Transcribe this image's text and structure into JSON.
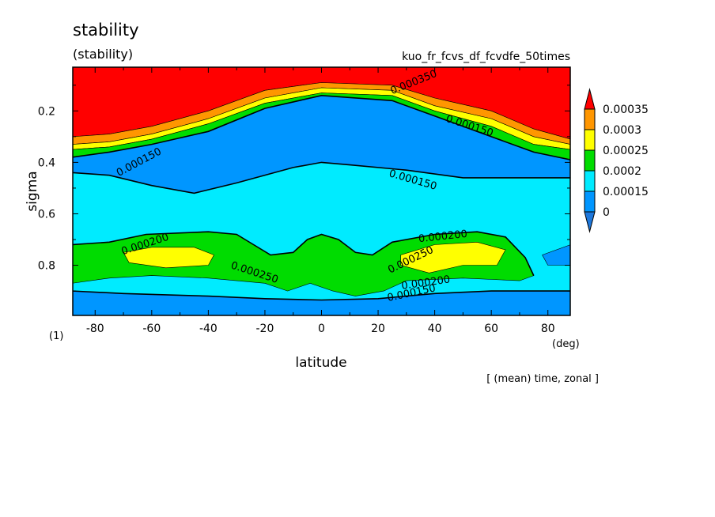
{
  "chart_data": {
    "type": "heatmap",
    "title": "stability",
    "subtitle": "(stability)",
    "run_name": "kuo_fr_fcvs_df_fcvdfe_50times",
    "xlabel": "latitude",
    "x_unit": "(deg)",
    "ylabel": "sigma",
    "y_unit": "(1)",
    "footnote": "[ (mean) time, zonal ]",
    "xlim": [
      -87.9,
      87.9
    ],
    "ylim": [
      0.995,
      0.03
    ],
    "x_ticks": [
      "-80",
      "-60",
      "-40",
      "-20",
      "0",
      "20",
      "40",
      "60",
      "80"
    ],
    "x_tick_values": [
      -80,
      -60,
      -40,
      -20,
      0,
      20,
      40,
      60,
      80
    ],
    "y_ticks": [
      "0.2",
      "0.4",
      "0.6",
      "0.8"
    ],
    "y_tick_values": [
      0.2,
      0.4,
      0.6,
      0.8
    ],
    "colorbar": {
      "labels": [
        "0.00035",
        "0.0003",
        "0.00025",
        "0.0002",
        "0.00015",
        "0"
      ],
      "bins": [
        {
          "level": "below 0",
          "color": "#1e78dc"
        },
        {
          "level": "0 – 0.00015",
          "color": "#0096ff"
        },
        {
          "level": "0.00015 – 0.0002",
          "color": "#00ebff"
        },
        {
          "level": "0.0002 – 0.00025",
          "color": "#00dc00"
        },
        {
          "level": "0.00025 – 0.0003",
          "color": "#ffff00"
        },
        {
          "level": "0.0003 – 0.00035",
          "color": "#ff9600"
        },
        {
          "level": "above 0.00035",
          "color": "#ff0000"
        }
      ]
    },
    "contour_labels": [
      "0.000150",
      "0.000200",
      "0.000250",
      "0.000350"
    ],
    "regions": [
      {
        "level": "above 0.00035",
        "color": "#ff0000",
        "poly": [
          [
            -88,
            0.03
          ],
          [
            88,
            0.03
          ],
          [
            88,
            0.31
          ],
          [
            75,
            0.27
          ],
          [
            60,
            0.2
          ],
          [
            40,
            0.15
          ],
          [
            25,
            0.1
          ],
          [
            0,
            0.09
          ],
          [
            -20,
            0.12
          ],
          [
            -40,
            0.2
          ],
          [
            -60,
            0.26
          ],
          [
            -75,
            0.29
          ],
          [
            -88,
            0.3
          ]
        ]
      },
      {
        "level": "0.0003 – 0.00035",
        "color": "#ff9600",
        "poly": [
          [
            -88,
            0.3
          ],
          [
            -75,
            0.29
          ],
          [
            -60,
            0.26
          ],
          [
            -40,
            0.2
          ],
          [
            -20,
            0.12
          ],
          [
            0,
            0.09
          ],
          [
            25,
            0.1
          ],
          [
            40,
            0.15
          ],
          [
            60,
            0.2
          ],
          [
            75,
            0.27
          ],
          [
            88,
            0.31
          ],
          [
            88,
            0.33
          ],
          [
            75,
            0.3
          ],
          [
            60,
            0.23
          ],
          [
            40,
            0.18
          ],
          [
            25,
            0.12
          ],
          [
            0,
            0.11
          ],
          [
            -20,
            0.15
          ],
          [
            -40,
            0.23
          ],
          [
            -60,
            0.29
          ],
          [
            -75,
            0.32
          ],
          [
            -88,
            0.33
          ]
        ]
      },
      {
        "level": "0.00025 – 0.0003",
        "color": "#ffff00",
        "poly": [
          [
            -88,
            0.33
          ],
          [
            -75,
            0.32
          ],
          [
            -60,
            0.29
          ],
          [
            -40,
            0.23
          ],
          [
            -20,
            0.15
          ],
          [
            0,
            0.11
          ],
          [
            25,
            0.12
          ],
          [
            40,
            0.18
          ],
          [
            60,
            0.23
          ],
          [
            75,
            0.3
          ],
          [
            88,
            0.33
          ],
          [
            88,
            0.35
          ],
          [
            75,
            0.33
          ],
          [
            60,
            0.26
          ],
          [
            40,
            0.2
          ],
          [
            25,
            0.14
          ],
          [
            0,
            0.13
          ],
          [
            -20,
            0.17
          ],
          [
            -40,
            0.25
          ],
          [
            -60,
            0.31
          ],
          [
            -75,
            0.34
          ],
          [
            -88,
            0.35
          ]
        ]
      },
      {
        "level": "0.0002 – 0.00025",
        "color": "#00dc00",
        "poly": [
          [
            -88,
            0.35
          ],
          [
            -75,
            0.34
          ],
          [
            -60,
            0.31
          ],
          [
            -40,
            0.25
          ],
          [
            -20,
            0.17
          ],
          [
            0,
            0.13
          ],
          [
            25,
            0.14
          ],
          [
            40,
            0.2
          ],
          [
            60,
            0.26
          ],
          [
            75,
            0.33
          ],
          [
            88,
            0.35
          ],
          [
            88,
            0.39
          ],
          [
            75,
            0.36
          ],
          [
            60,
            0.3
          ],
          [
            40,
            0.22
          ],
          [
            25,
            0.16
          ],
          [
            0,
            0.14
          ],
          [
            -20,
            0.19
          ],
          [
            -40,
            0.28
          ],
          [
            -60,
            0.33
          ],
          [
            -75,
            0.36
          ],
          [
            -88,
            0.38
          ]
        ]
      },
      {
        "level": "0 – 0.00015",
        "color": "#0096ff",
        "poly": [
          [
            -88,
            0.38
          ],
          [
            -75,
            0.36
          ],
          [
            -60,
            0.33
          ],
          [
            -40,
            0.28
          ],
          [
            -20,
            0.19
          ],
          [
            0,
            0.14
          ],
          [
            25,
            0.16
          ],
          [
            40,
            0.22
          ],
          [
            60,
            0.3
          ],
          [
            75,
            0.36
          ],
          [
            88,
            0.39
          ],
          [
            88,
            0.46
          ],
          [
            70,
            0.46
          ],
          [
            50,
            0.46
          ],
          [
            30,
            0.43
          ],
          [
            10,
            0.41
          ],
          [
            0,
            0.4
          ],
          [
            -10,
            0.42
          ],
          [
            -30,
            0.48
          ],
          [
            -45,
            0.52
          ],
          [
            -60,
            0.49
          ],
          [
            -75,
            0.45
          ],
          [
            -88,
            0.44
          ]
        ]
      },
      {
        "level": "0.0002 – 0.00025",
        "color": "#00dc00",
        "poly": [
          [
            -88,
            0.72
          ],
          [
            -75,
            0.71
          ],
          [
            -62,
            0.68
          ],
          [
            -40,
            0.67
          ],
          [
            -30,
            0.68
          ],
          [
            -24,
            0.72
          ],
          [
            -18,
            0.76
          ],
          [
            -10,
            0.75
          ],
          [
            -5,
            0.7
          ],
          [
            0,
            0.68
          ],
          [
            6,
            0.7
          ],
          [
            12,
            0.75
          ],
          [
            18,
            0.76
          ],
          [
            25,
            0.71
          ],
          [
            40,
            0.68
          ],
          [
            55,
            0.67
          ],
          [
            65,
            0.69
          ],
          [
            72,
            0.77
          ],
          [
            75,
            0.84
          ],
          [
            70,
            0.86
          ],
          [
            50,
            0.85
          ],
          [
            30,
            0.86
          ],
          [
            22,
            0.9
          ],
          [
            12,
            0.92
          ],
          [
            4,
            0.9
          ],
          [
            -4,
            0.87
          ],
          [
            -12,
            0.9
          ],
          [
            -20,
            0.87
          ],
          [
            -40,
            0.85
          ],
          [
            -60,
            0.84
          ],
          [
            -75,
            0.85
          ],
          [
            -88,
            0.87
          ]
        ]
      },
      {
        "level": "0.00025 – 0.0003",
        "color": "#ffff00",
        "poly": [
          [
            -70,
            0.75
          ],
          [
            -60,
            0.73
          ],
          [
            -45,
            0.73
          ],
          [
            -38,
            0.76
          ],
          [
            -40,
            0.8
          ],
          [
            -55,
            0.81
          ],
          [
            -68,
            0.79
          ]
        ]
      },
      {
        "level": "0.00025 – 0.0003",
        "color": "#ffff00",
        "poly": [
          [
            28,
            0.76
          ],
          [
            40,
            0.72
          ],
          [
            55,
            0.71
          ],
          [
            65,
            0.74
          ],
          [
            62,
            0.8
          ],
          [
            50,
            0.8
          ],
          [
            38,
            0.83
          ],
          [
            28,
            0.8
          ]
        ]
      },
      {
        "level": "0 – 0.00015",
        "color": "#0096ff",
        "poly": [
          [
            -88,
            0.9
          ],
          [
            -70,
            0.91
          ],
          [
            -40,
            0.92
          ],
          [
            -20,
            0.93
          ],
          [
            0,
            0.935
          ],
          [
            20,
            0.93
          ],
          [
            40,
            0.91
          ],
          [
            60,
            0.9
          ],
          [
            80,
            0.9
          ],
          [
            88,
            0.9
          ],
          [
            88,
            0.995
          ],
          [
            -88,
            0.995
          ]
        ]
      },
      {
        "level": "0 – 0.00015",
        "color": "#0096ff",
        "poly": [
          [
            78,
            0.76
          ],
          [
            88,
            0.72
          ],
          [
            88,
            0.8
          ],
          [
            80,
            0.8
          ]
        ]
      }
    ],
    "contour_lines": [
      {
        "level": "0.00015",
        "points": [
          [
            -88,
            0.44
          ],
          [
            -75,
            0.45
          ],
          [
            -60,
            0.49
          ],
          [
            -45,
            0.52
          ],
          [
            -30,
            0.48
          ],
          [
            -10,
            0.42
          ],
          [
            0,
            0.4
          ],
          [
            10,
            0.41
          ],
          [
            30,
            0.43
          ],
          [
            50,
            0.46
          ],
          [
            70,
            0.46
          ],
          [
            88,
            0.46
          ]
        ]
      },
      {
        "level": "0.0002",
        "points": [
          [
            -88,
            0.72
          ],
          [
            -75,
            0.71
          ],
          [
            -62,
            0.68
          ],
          [
            -40,
            0.67
          ],
          [
            -30,
            0.68
          ],
          [
            -24,
            0.72
          ],
          [
            -18,
            0.76
          ],
          [
            -10,
            0.75
          ],
          [
            -5,
            0.7
          ],
          [
            0,
            0.68
          ],
          [
            6,
            0.7
          ],
          [
            12,
            0.75
          ],
          [
            18,
            0.76
          ],
          [
            25,
            0.71
          ],
          [
            40,
            0.68
          ],
          [
            55,
            0.67
          ],
          [
            65,
            0.69
          ],
          [
            72,
            0.77
          ],
          [
            75,
            0.84
          ]
        ]
      },
      {
        "level": "0.00015",
        "points": [
          [
            -88,
            0.9
          ],
          [
            -70,
            0.91
          ],
          [
            -40,
            0.92
          ],
          [
            -20,
            0.93
          ],
          [
            0,
            0.935
          ],
          [
            20,
            0.93
          ],
          [
            40,
            0.91
          ],
          [
            60,
            0.9
          ],
          [
            80,
            0.9
          ],
          [
            88,
            0.9
          ]
        ]
      },
      {
        "level": "0.00015",
        "points": [
          [
            -88,
            0.38
          ],
          [
            -75,
            0.36
          ],
          [
            -60,
            0.33
          ],
          [
            -40,
            0.28
          ],
          [
            -20,
            0.19
          ],
          [
            0,
            0.14
          ],
          [
            25,
            0.16
          ],
          [
            40,
            0.22
          ],
          [
            60,
            0.3
          ],
          [
            75,
            0.36
          ],
          [
            88,
            0.39
          ]
        ]
      }
    ],
    "contour_label_positions": [
      {
        "text": "0.000150",
        "lat": -64,
        "sigma": 0.41,
        "angle": -28
      },
      {
        "text": "0.000150",
        "lat": 32,
        "sigma": 0.48,
        "angle": 16
      },
      {
        "text": "0.000150",
        "lat": 52,
        "sigma": 0.27,
        "angle": 18
      },
      {
        "text": "0.000200",
        "lat": -62,
        "sigma": 0.73,
        "angle": -18
      },
      {
        "text": "0.000200",
        "lat": 43,
        "sigma": 0.7,
        "angle": -6
      },
      {
        "text": "0.000250",
        "lat": -24,
        "sigma": 0.84,
        "angle": 18
      },
      {
        "text": "0.000250",
        "lat": 32,
        "sigma": 0.79,
        "angle": -26
      },
      {
        "text": "0.000200",
        "lat": 37,
        "sigma": 0.88,
        "angle": -8
      },
      {
        "text": "0.000150",
        "lat": 32,
        "sigma": 0.92,
        "angle": -12
      },
      {
        "text": "0.000350",
        "lat": 33,
        "sigma": 0.1,
        "angle": -22
      }
    ]
  }
}
